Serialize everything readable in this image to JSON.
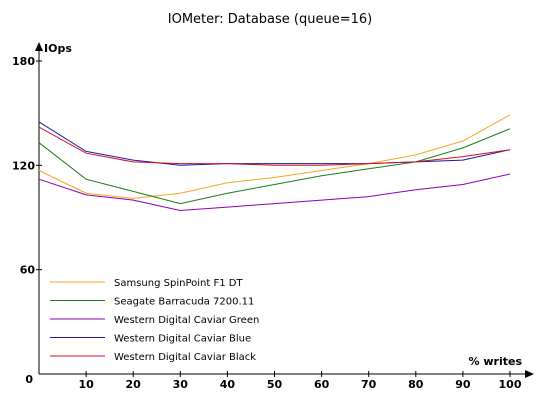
{
  "chart_data": {
    "type": "line",
    "title": "IOMeter: Database (queue=16)",
    "ylabel": "IOps",
    "xlabel": "% writes",
    "x": [
      0,
      10,
      20,
      30,
      40,
      50,
      60,
      70,
      80,
      90,
      100
    ],
    "xlim": [
      0,
      100
    ],
    "ylim": [
      0,
      180
    ],
    "y_ticks": [
      60,
      120,
      180
    ],
    "y_zero_label": "0",
    "grid": false,
    "legend_position": "bottom-left",
    "series": [
      {
        "name": "Samsung SpinPoint F1 DT",
        "color": "#f5a623",
        "values": [
          117,
          104,
          101,
          104,
          110,
          113,
          117,
          121,
          126,
          134,
          149
        ]
      },
      {
        "name": "Seagate Barracuda 7200.11",
        "color": "#1a7f1a",
        "values": [
          133,
          112,
          105,
          98,
          104,
          109,
          114,
          118,
          122,
          130,
          141
        ]
      },
      {
        "name": "Western Digital Caviar Green",
        "color": "#8b00b8",
        "values": [
          112,
          103,
          100,
          94,
          96,
          98,
          100,
          102,
          106,
          109,
          115
        ]
      },
      {
        "name": "Western Digital Caviar Blue",
        "color": "#1a1aa6",
        "values": [
          145,
          128,
          123,
          120,
          121,
          121,
          121,
          121,
          122,
          123,
          129
        ]
      },
      {
        "name": "Western Digital Caviar Black",
        "color": "#d01020",
        "values": [
          142,
          127,
          122,
          121,
          121,
          120,
          120,
          121,
          122,
          125,
          129
        ]
      }
    ]
  }
}
